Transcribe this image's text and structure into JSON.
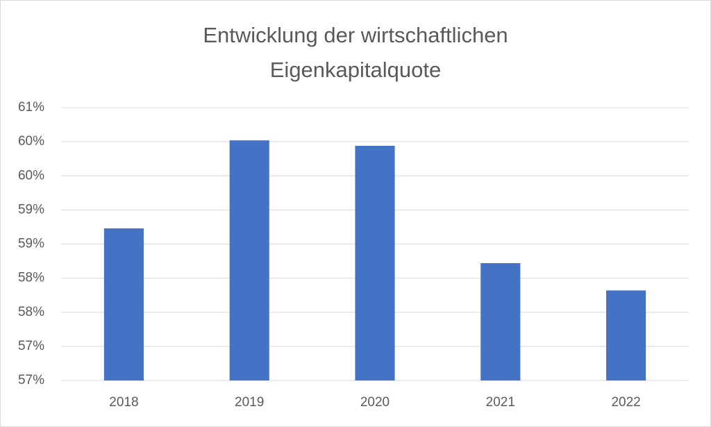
{
  "chart_data": {
    "type": "bar",
    "title": "Entwicklung der wirtschaftlichen Eigenkapitalquote",
    "categories": [
      "2018",
      "2019",
      "2020",
      "2021",
      "2022"
    ],
    "values": [
      58.73,
      60.02,
      59.94,
      58.22,
      57.82
    ],
    "color": "#4472c4",
    "ylim": [
      56.5,
      60.5
    ],
    "yticks": [
      {
        "value": 56.5,
        "label": "57%"
      },
      {
        "value": 57,
        "label": "57%"
      },
      {
        "value": 57.5,
        "label": "58%"
      },
      {
        "value": 58,
        "label": "58%"
      },
      {
        "value": 58.5,
        "label": "59%"
      },
      {
        "value": 59,
        "label": "59%"
      },
      {
        "value": 59.5,
        "label": "60%"
      },
      {
        "value": 60,
        "label": "60%"
      },
      {
        "value": 60.5,
        "label": "61%"
      }
    ],
    "grid": true
  }
}
